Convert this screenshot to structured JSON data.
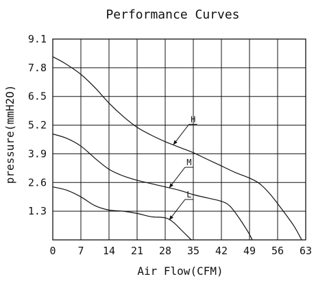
{
  "chart_data": {
    "type": "line",
    "title": "Performance Curves",
    "xlabel": "Air Flow(CFM)",
    "ylabel": "pressure(mmH2O)",
    "xlim": [
      0,
      63
    ],
    "ylim": [
      0,
      9.1
    ],
    "x_ticks": [
      "0",
      "7",
      "14",
      "21",
      "28",
      "35",
      "42",
      "49",
      "56",
      "63"
    ],
    "y_ticks": [
      "1.3",
      "2.6",
      "3.9",
      "5.2",
      "6.5",
      "7.8",
      "9.1"
    ],
    "grid": true,
    "series": [
      {
        "name": "H",
        "points": [
          [
            0,
            8.3
          ],
          [
            3,
            8.0
          ],
          [
            7,
            7.5
          ],
          [
            10.5,
            6.9
          ],
          [
            14,
            6.2
          ],
          [
            17.5,
            5.6
          ],
          [
            21,
            5.1
          ],
          [
            24.5,
            4.75
          ],
          [
            28,
            4.45
          ],
          [
            31.5,
            4.2
          ],
          [
            35,
            3.95
          ],
          [
            38.5,
            3.65
          ],
          [
            42,
            3.35
          ],
          [
            45.5,
            3.05
          ],
          [
            49,
            2.8
          ],
          [
            51.5,
            2.55
          ],
          [
            54,
            2.1
          ],
          [
            57,
            1.4
          ],
          [
            60,
            0.65
          ],
          [
            62,
            0.0
          ]
        ]
      },
      {
        "name": "M",
        "points": [
          [
            0,
            4.8
          ],
          [
            3.5,
            4.6
          ],
          [
            7,
            4.25
          ],
          [
            10.5,
            3.7
          ],
          [
            14,
            3.2
          ],
          [
            17.5,
            2.9
          ],
          [
            21,
            2.7
          ],
          [
            24.5,
            2.55
          ],
          [
            28,
            2.4
          ],
          [
            31.5,
            2.25
          ],
          [
            35,
            2.05
          ],
          [
            38.5,
            1.9
          ],
          [
            42,
            1.75
          ],
          [
            44,
            1.55
          ],
          [
            46,
            1.1
          ],
          [
            48.5,
            0.4
          ],
          [
            49.7,
            0.0
          ]
        ]
      },
      {
        "name": "L",
        "points": [
          [
            0,
            2.4
          ],
          [
            3.5,
            2.25
          ],
          [
            7,
            1.95
          ],
          [
            10.5,
            1.55
          ],
          [
            14,
            1.35
          ],
          [
            17.5,
            1.3
          ],
          [
            21,
            1.2
          ],
          [
            24.5,
            1.05
          ],
          [
            28,
            1.0
          ],
          [
            30,
            0.8
          ],
          [
            32,
            0.45
          ],
          [
            34.5,
            0.0
          ]
        ]
      }
    ]
  }
}
